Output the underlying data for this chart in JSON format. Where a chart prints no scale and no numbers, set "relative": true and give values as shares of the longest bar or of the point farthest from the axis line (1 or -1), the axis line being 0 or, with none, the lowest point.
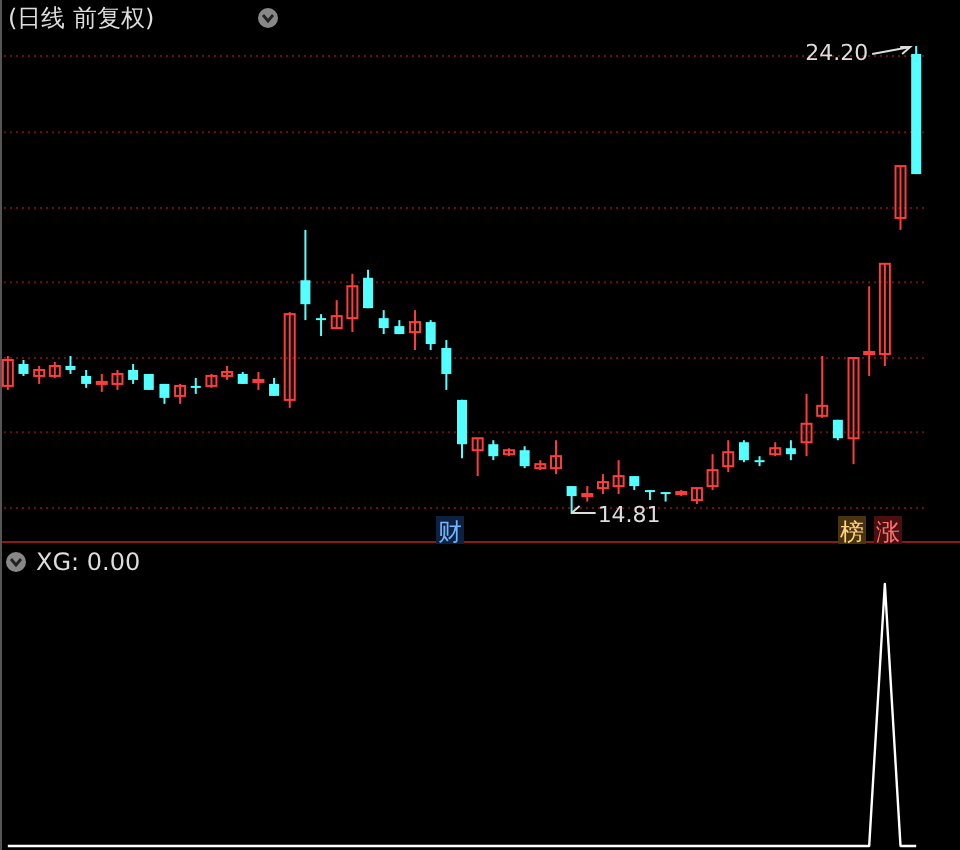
{
  "chart_data": [
    {
      "type": "candlestick",
      "title": "(日线 前复权)",
      "categories": [
        null,
        null,
        null,
        null,
        null,
        null,
        null,
        null,
        null,
        null,
        null,
        null,
        null,
        null,
        null,
        null,
        null,
        null,
        null,
        null,
        null,
        null,
        null,
        null,
        null,
        null,
        null,
        null,
        null,
        null,
        null,
        null,
        null,
        null,
        null,
        null,
        null,
        null,
        null,
        null,
        null,
        null,
        null,
        null,
        null,
        null,
        null,
        null,
        null,
        null,
        null,
        null,
        null,
        null,
        null,
        null,
        null,
        null,
        null
      ],
      "ohlc": [
        [
          17.38,
          17.98,
          17.3,
          17.9
        ],
        [
          17.82,
          17.9,
          17.58,
          17.62
        ],
        [
          17.58,
          17.78,
          17.42,
          17.7
        ],
        [
          17.58,
          17.86,
          17.54,
          17.78
        ],
        [
          17.78,
          17.98,
          17.62,
          17.7
        ],
        [
          17.58,
          17.7,
          17.34,
          17.42
        ],
        [
          17.42,
          17.62,
          17.26,
          17.46
        ],
        [
          17.42,
          17.7,
          17.3,
          17.62
        ],
        [
          17.7,
          17.82,
          17.42,
          17.5
        ],
        [
          17.62,
          17.62,
          17.3,
          17.3
        ],
        [
          17.42,
          17.42,
          17.02,
          17.14
        ],
        [
          17.18,
          17.42,
          17.02,
          17.38
        ],
        [
          17.38,
          17.54,
          17.22,
          17.34
        ],
        [
          17.38,
          17.62,
          17.34,
          17.58
        ],
        [
          17.58,
          17.78,
          17.5,
          17.66
        ],
        [
          17.62,
          17.66,
          17.42,
          17.42
        ],
        [
          17.46,
          17.66,
          17.3,
          17.5
        ],
        [
          17.42,
          17.54,
          17.18,
          17.18
        ],
        [
          17.1,
          18.86,
          16.94,
          18.82
        ],
        [
          19.5,
          20.51,
          18.7,
          19.02
        ],
        [
          18.74,
          18.82,
          18.38,
          18.7
        ],
        [
          18.54,
          19.1,
          18.54,
          18.78
        ],
        [
          18.74,
          19.63,
          18.46,
          19.38
        ],
        [
          19.55,
          19.71,
          18.94,
          18.94
        ],
        [
          18.74,
          18.9,
          18.42,
          18.54
        ],
        [
          18.58,
          18.7,
          18.42,
          18.42
        ],
        [
          18.46,
          18.9,
          18.1,
          18.66
        ],
        [
          18.66,
          18.7,
          18.1,
          18.22
        ],
        [
          18.14,
          18.3,
          17.3,
          17.62
        ],
        [
          17.1,
          17.1,
          15.93,
          16.21
        ],
        [
          16.09,
          16.33,
          15.57,
          16.33
        ],
        [
          16.21,
          16.29,
          15.89,
          15.97
        ],
        [
          16.01,
          16.13,
          15.97,
          16.09
        ],
        [
          16.09,
          16.17,
          15.73,
          15.77
        ],
        [
          15.73,
          15.89,
          15.69,
          15.81
        ],
        [
          15.73,
          16.29,
          15.61,
          15.97
        ],
        [
          15.37,
          15.37,
          14.81,
          15.17
        ],
        [
          15.17,
          15.37,
          15.06,
          15.21
        ],
        [
          15.33,
          15.61,
          15.21,
          15.45
        ],
        [
          15.37,
          15.89,
          15.21,
          15.57
        ],
        [
          15.57,
          15.57,
          15.29,
          15.37
        ],
        [
          15.29,
          15.29,
          15.09,
          15.25
        ],
        [
          15.25,
          15.25,
          15.06,
          15.21
        ],
        [
          15.21,
          15.29,
          15.17,
          15.25
        ],
        [
          15.09,
          15.33,
          15.01,
          15.33
        ],
        [
          15.37,
          16.01,
          15.29,
          15.69
        ],
        [
          15.77,
          16.29,
          15.65,
          16.05
        ],
        [
          16.25,
          16.29,
          15.85,
          15.89
        ],
        [
          15.89,
          15.97,
          15.77,
          15.85
        ],
        [
          16.01,
          16.25,
          15.97,
          16.13
        ],
        [
          16.13,
          16.29,
          15.89,
          16.01
        ],
        [
          16.25,
          17.22,
          15.97,
          16.62
        ],
        [
          16.78,
          17.98,
          16.74,
          16.98
        ],
        [
          16.7,
          16.7,
          16.29,
          16.33
        ],
        [
          16.33,
          17.94,
          15.81,
          17.94
        ],
        [
          18.02,
          19.38,
          17.58,
          18.06
        ],
        [
          18.02,
          19.83,
          17.78,
          19.83
        ],
        [
          20.75,
          21.79,
          20.51,
          21.79
        ],
        [
          24.04,
          24.2,
          21.63,
          21.63
        ]
      ],
      "grid": "y",
      "yticks": [
        {
          "value": 14.93,
          "label": null
        },
        {
          "value": 16.45,
          "label": null
        },
        {
          "value": 17.94,
          "label": null
        },
        {
          "value": 19.46,
          "label": null
        },
        {
          "value": 20.95,
          "label": null
        },
        {
          "value": 22.47,
          "label": null
        },
        {
          "value": 24.0,
          "label": null
        }
      ],
      "annotations": [
        "24.20",
        "14.81",
        "财",
        "榜",
        "涨"
      ]
    },
    {
      "type": "line",
      "title": "XG: 0.00",
      "relative": true,
      "categories": [
        null,
        null,
        null,
        null,
        null,
        null,
        null,
        null,
        null,
        null,
        null,
        null,
        null,
        null,
        null,
        null,
        null,
        null,
        null,
        null,
        null,
        null,
        null,
        null,
        null,
        null,
        null,
        null,
        null,
        null,
        null,
        null,
        null,
        null,
        null,
        null,
        null,
        null,
        null,
        null,
        null,
        null,
        null,
        null,
        null,
        null,
        null,
        null,
        null,
        null,
        null,
        null,
        null,
        null,
        null,
        null,
        null,
        null,
        null
      ],
      "series": [
        {
          "color": "#ffffff",
          "values": [
            0,
            0,
            0,
            0,
            0,
            0,
            0,
            0,
            0,
            0,
            0,
            0,
            0,
            0,
            0,
            0,
            0,
            0,
            0,
            0,
            0,
            0,
            0,
            0,
            0,
            0,
            0,
            0,
            0,
            0,
            0,
            0,
            0,
            0,
            0,
            0,
            0,
            0,
            0,
            0,
            0,
            0,
            0,
            0,
            0,
            0,
            0,
            0,
            0,
            0,
            0,
            0,
            0,
            0,
            0,
            0,
            1,
            0,
            0
          ]
        }
      ]
    }
  ]
}
